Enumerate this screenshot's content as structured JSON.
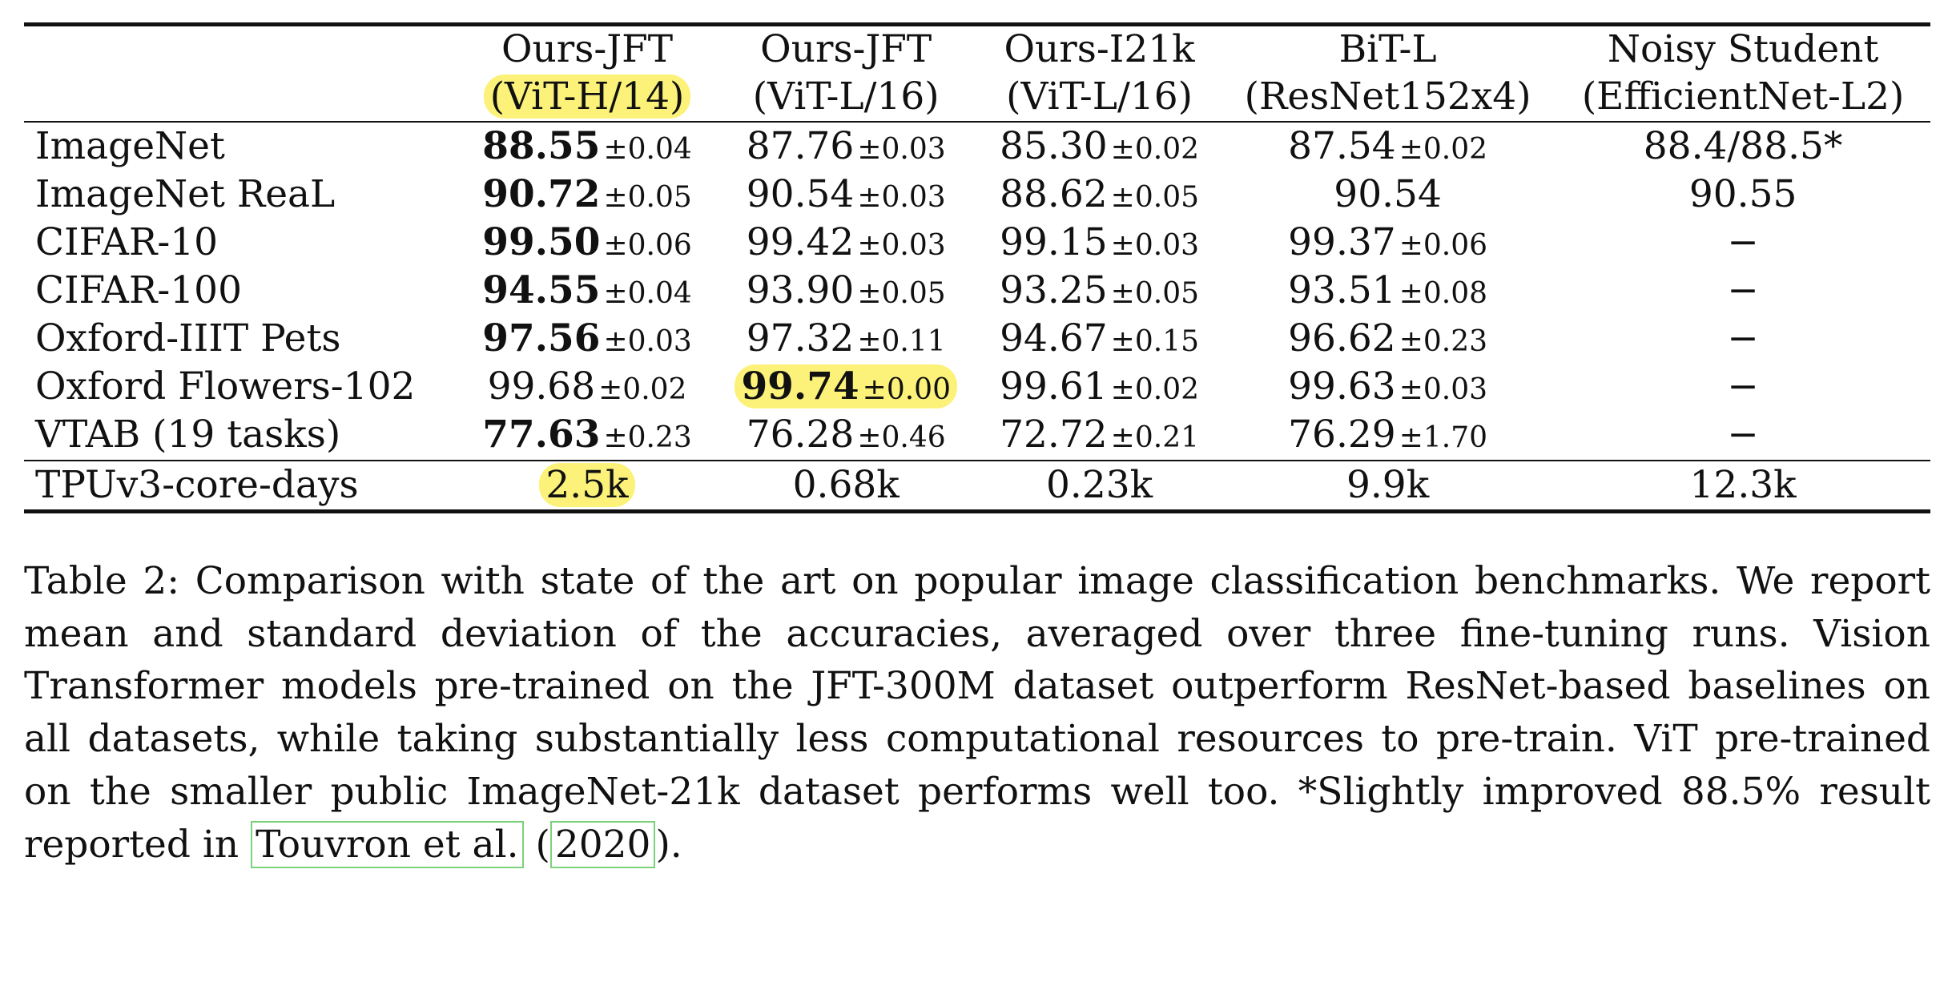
{
  "table": {
    "columns": [
      {
        "line1": "Ours-JFT",
        "line2": "(ViT-H/14)",
        "highlight": true
      },
      {
        "line1": "Ours-JFT",
        "line2": "(ViT-L/16)",
        "highlight": false
      },
      {
        "line1": "Ours-I21k",
        "line2": "(ViT-L/16)",
        "highlight": false
      },
      {
        "line1": "BiT-L",
        "line2": "(ResNet152x4)",
        "highlight": false
      },
      {
        "line1": "Noisy Student",
        "line2": "(EfficientNet-L2)",
        "highlight": false
      }
    ],
    "rows": [
      {
        "dataset": "ImageNet",
        "cells": [
          {
            "mean": "88.55",
            "sd": "0.04",
            "best": true
          },
          {
            "mean": "87.76",
            "sd": "0.03"
          },
          {
            "mean": "85.30",
            "sd": "0.02"
          },
          {
            "mean": "87.54",
            "sd": "0.02"
          },
          {
            "text": "88.4/88.5*"
          }
        ]
      },
      {
        "dataset": "ImageNet ReaL",
        "cells": [
          {
            "mean": "90.72",
            "sd": "0.05",
            "best": true
          },
          {
            "mean": "90.54",
            "sd": "0.03"
          },
          {
            "mean": "88.62",
            "sd": "0.05"
          },
          {
            "text": "90.54"
          },
          {
            "text": "90.55"
          }
        ]
      },
      {
        "dataset": "CIFAR-10",
        "cells": [
          {
            "mean": "99.50",
            "sd": "0.06",
            "best": true
          },
          {
            "mean": "99.42",
            "sd": "0.03"
          },
          {
            "mean": "99.15",
            "sd": "0.03"
          },
          {
            "mean": "99.37",
            "sd": "0.06"
          },
          {
            "text": "−"
          }
        ]
      },
      {
        "dataset": "CIFAR-100",
        "cells": [
          {
            "mean": "94.55",
            "sd": "0.04",
            "best": true
          },
          {
            "mean": "93.90",
            "sd": "0.05"
          },
          {
            "mean": "93.25",
            "sd": "0.05"
          },
          {
            "mean": "93.51",
            "sd": "0.08"
          },
          {
            "text": "−"
          }
        ]
      },
      {
        "dataset": "Oxford-IIIT Pets",
        "cells": [
          {
            "mean": "97.56",
            "sd": "0.03",
            "best": true
          },
          {
            "mean": "97.32",
            "sd": "0.11"
          },
          {
            "mean": "94.67",
            "sd": "0.15"
          },
          {
            "mean": "96.62",
            "sd": "0.23"
          },
          {
            "text": "−"
          }
        ]
      },
      {
        "dataset": "Oxford Flowers-102",
        "cells": [
          {
            "mean": "99.68",
            "sd": "0.02"
          },
          {
            "mean": "99.74",
            "sd": "0.00",
            "best": true,
            "highlight": true
          },
          {
            "mean": "99.61",
            "sd": "0.02"
          },
          {
            "mean": "99.63",
            "sd": "0.03"
          },
          {
            "text": "−"
          }
        ]
      },
      {
        "dataset": "VTAB (19 tasks)",
        "cells": [
          {
            "mean": "77.63",
            "sd": "0.23",
            "best": true
          },
          {
            "mean": "76.28",
            "sd": "0.46"
          },
          {
            "mean": "72.72",
            "sd": "0.21"
          },
          {
            "mean": "76.29",
            "sd": "1.70"
          },
          {
            "text": "−"
          }
        ]
      }
    ],
    "compute_row": {
      "label": "TPUv3-core-days",
      "values": [
        {
          "text": "2.5k",
          "highlight": true
        },
        {
          "text": "0.68k"
        },
        {
          "text": "0.23k"
        },
        {
          "text": "9.9k"
        },
        {
          "text": "12.3k"
        }
      ]
    },
    "pm_symbol": "±"
  },
  "caption": {
    "main": "Table 2:   Comparison with state of the art on popular image classification benchmarks. We report mean and standard deviation of the accuracies, averaged over three fine-tuning runs. Vision Transformer models pre-trained on the JFT-300M dataset outperform ResNet-based baselines on all datasets, while taking substantially less computational resources to pre-train. ViT pre-trained on the smaller public ImageNet-21k dataset performs well too. *Slightly improved 88.5% result reported in ",
    "cite_author": "Touvron et al.",
    "cite_year": "2020",
    "end": ")."
  },
  "colors": {
    "highlight": "#fcf27a",
    "cite_box": "#7bd27b"
  }
}
